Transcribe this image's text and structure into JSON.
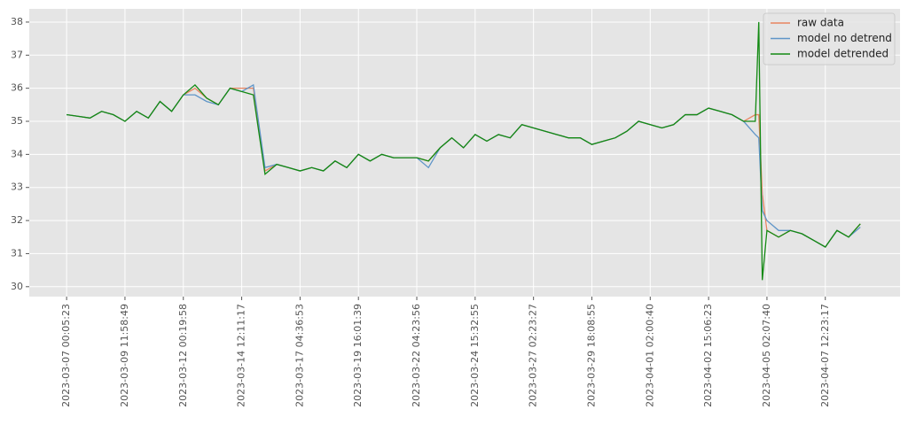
{
  "chart_data": {
    "type": "line",
    "x": [
      0,
      1,
      2,
      3,
      4,
      5,
      6,
      7,
      8,
      9,
      10,
      11,
      12,
      13,
      14,
      15,
      16,
      17,
      18,
      19,
      20,
      21,
      22,
      23,
      24,
      25,
      26,
      27,
      28,
      29,
      30,
      31,
      32,
      33,
      34,
      35,
      36,
      37,
      38,
      39,
      40,
      41,
      42,
      43,
      44,
      45,
      46,
      47,
      48,
      49,
      50,
      51,
      52,
      53,
      54,
      55,
      56,
      57,
      58,
      59,
      59.3,
      59.6,
      60,
      61,
      62,
      63,
      64,
      65,
      66,
      67,
      68
    ],
    "series": [
      {
        "name": "raw data",
        "color": "#e8845f",
        "values": [
          35.2,
          35.15,
          35.1,
          35.3,
          35.2,
          35.0,
          35.3,
          35.1,
          35.6,
          35.3,
          35.8,
          36.0,
          35.7,
          35.5,
          36.0,
          36.0,
          36.0,
          33.5,
          33.7,
          33.6,
          33.5,
          33.6,
          33.5,
          33.8,
          33.6,
          34.0,
          33.8,
          34.0,
          33.9,
          33.9,
          33.9,
          33.8,
          34.2,
          34.5,
          34.2,
          34.6,
          34.4,
          34.6,
          34.5,
          34.9,
          34.8,
          34.7,
          34.6,
          34.5,
          34.5,
          34.3,
          34.4,
          34.5,
          34.7,
          35.0,
          34.9,
          34.8,
          34.9,
          35.2,
          35.2,
          35.4,
          35.3,
          35.2,
          35.0,
          35.2,
          35.2,
          32.8,
          31.7,
          31.5,
          31.7,
          31.6,
          31.4,
          31.2,
          31.7,
          31.5,
          31.9
        ]
      },
      {
        "name": "model no detrend",
        "color": "#5f95c8",
        "values": [
          35.2,
          35.15,
          35.1,
          35.3,
          35.2,
          35.0,
          35.3,
          35.1,
          35.6,
          35.3,
          35.8,
          35.8,
          35.6,
          35.5,
          36.0,
          35.9,
          36.1,
          33.6,
          33.7,
          33.6,
          33.5,
          33.6,
          33.5,
          33.8,
          33.6,
          34.0,
          33.8,
          34.0,
          33.9,
          33.9,
          33.9,
          33.6,
          34.2,
          34.5,
          34.2,
          34.6,
          34.4,
          34.6,
          34.5,
          34.9,
          34.8,
          34.7,
          34.6,
          34.5,
          34.5,
          34.3,
          34.4,
          34.5,
          34.7,
          35.0,
          34.9,
          34.8,
          34.9,
          35.2,
          35.2,
          35.4,
          35.3,
          35.2,
          35.0,
          34.6,
          34.5,
          32.3,
          32.0,
          31.7,
          31.7,
          31.6,
          31.4,
          31.2,
          31.7,
          31.5,
          31.8
        ]
      },
      {
        "name": "model detrended",
        "color": "#138a13",
        "values": [
          35.2,
          35.15,
          35.1,
          35.3,
          35.2,
          35.0,
          35.3,
          35.1,
          35.6,
          35.3,
          35.8,
          36.1,
          35.7,
          35.5,
          36.0,
          35.9,
          35.8,
          33.4,
          33.7,
          33.6,
          33.5,
          33.6,
          33.5,
          33.8,
          33.6,
          34.0,
          33.8,
          34.0,
          33.9,
          33.9,
          33.9,
          33.8,
          34.2,
          34.5,
          34.2,
          34.6,
          34.4,
          34.6,
          34.5,
          34.9,
          34.8,
          34.7,
          34.6,
          34.5,
          34.5,
          34.3,
          34.4,
          34.5,
          34.7,
          35.0,
          34.9,
          34.8,
          34.9,
          35.2,
          35.2,
          35.4,
          35.3,
          35.2,
          35.0,
          35.0,
          38.0,
          30.2,
          31.7,
          31.5,
          31.7,
          31.6,
          31.4,
          31.2,
          31.7,
          31.5,
          31.9
        ]
      }
    ],
    "xlim": [
      -3.2,
      71.4
    ],
    "xticks": [
      {
        "value": 0,
        "label": "2023-03-07 00:05:23"
      },
      {
        "value": 5,
        "label": "2023-03-09 11:58:49"
      },
      {
        "value": 10,
        "label": "2023-03-12 00:19:58"
      },
      {
        "value": 15,
        "label": "2023-03-14 12:11:17"
      },
      {
        "value": 20,
        "label": "2023-03-17 04:36:53"
      },
      {
        "value": 25,
        "label": "2023-03-19 16:01:39"
      },
      {
        "value": 30,
        "label": "2023-03-22 04:23:56"
      },
      {
        "value": 35,
        "label": "2023-03-24 15:32:55"
      },
      {
        "value": 40,
        "label": "2023-03-27 02:23:27"
      },
      {
        "value": 45,
        "label": "2023-03-29 18:08:55"
      },
      {
        "value": 50,
        "label": "2023-04-01 02:00:40"
      },
      {
        "value": 55,
        "label": "2023-04-02 15:06:23"
      },
      {
        "value": 60,
        "label": "2023-04-05 02:07:40"
      },
      {
        "value": 65,
        "label": "2023-04-07 12:23:17"
      }
    ],
    "ylim": [
      29.7,
      38.4
    ],
    "yticks": [
      30,
      31,
      32,
      33,
      34,
      35,
      36,
      37,
      38
    ],
    "grid": true,
    "legend": "upper right"
  }
}
